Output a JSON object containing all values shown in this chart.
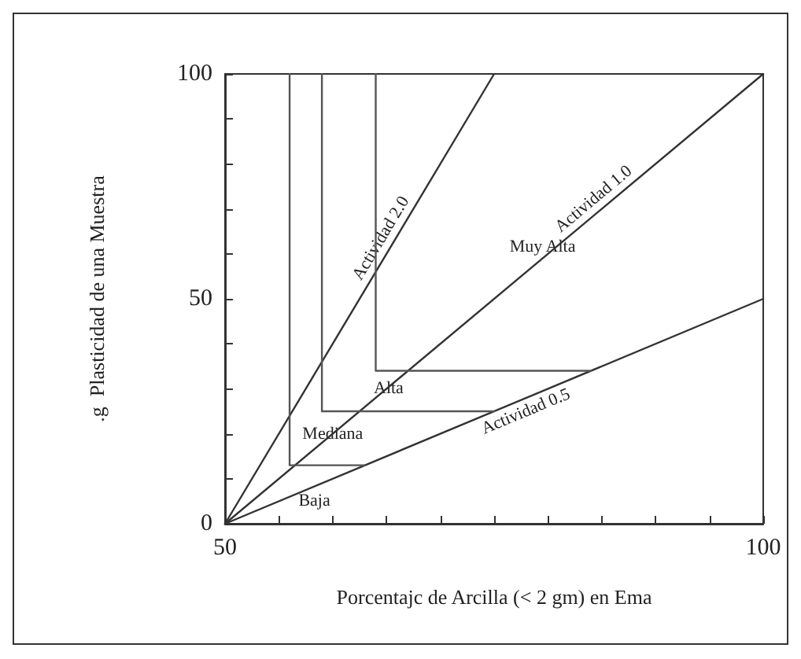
{
  "chart_data": {
    "type": "line",
    "xlabel": "Porcentajc de Arcilla (< 2 gm) en Ema",
    "ylabel": ".g  Plasticidad de una Muestra",
    "xlim": [
      50,
      100
    ],
    "ylim": [
      0,
      100
    ],
    "xticks": [
      50,
      {
        "value": 55,
        "label": null
      },
      {
        "value": 60,
        "label": null
      },
      {
        "value": 65,
        "label": null
      },
      {
        "value": 70,
        "label": null
      },
      {
        "value": 75,
        "label": null
      },
      {
        "value": 80,
        "label": null
      },
      {
        "value": 85,
        "label": null
      },
      {
        "value": 90,
        "label": null
      },
      {
        "value": 95,
        "label": null
      },
      100
    ],
    "yticks": [
      0,
      {
        "value": 10,
        "label": null
      },
      {
        "value": 20,
        "label": null
      },
      {
        "value": 30,
        "label": null
      },
      {
        "value": 40,
        "label": null
      },
      50,
      {
        "value": 60,
        "label": null
      },
      {
        "value": 70,
        "label": null
      },
      {
        "value": 80,
        "label": null
      },
      {
        "value": 90,
        "label": null
      },
      100
    ],
    "grid": false,
    "legend": false,
    "marker": "none",
    "line_style": "solid",
    "series": [
      {
        "name": "Actividad 2.0",
        "color": "#333333",
        "x": [
          50,
          75
        ],
        "values": [
          0,
          100
        ]
      },
      {
        "name": "Actividad 1.0",
        "color": "#333333",
        "x": [
          50,
          100
        ],
        "values": [
          0,
          100
        ]
      },
      {
        "name": "Actividad 0.5",
        "color": "#333333",
        "x": [
          50,
          100
        ],
        "values": [
          0,
          50
        ]
      },
      {
        "color": "#555555",
        "x": [
          56,
          56,
          63
        ],
        "values": [
          100,
          13,
          13
        ]
      },
      {
        "color": "#555555",
        "x": [
          59,
          59,
          75
        ],
        "values": [
          100,
          25,
          25
        ]
      },
      {
        "color": "#555555",
        "x": [
          64,
          64,
          84
        ],
        "values": [
          100,
          34,
          34
        ]
      }
    ],
    "annotations": [
      {
        "text": "Baja",
        "x": 58.3,
        "y": 5
      },
      {
        "text": "Mediana",
        "x": 60,
        "y": 20
      },
      {
        "text": "Alta",
        "x": 65.2,
        "y": 30
      },
      {
        "text": "Muy Alta",
        "x": 79.5,
        "y": 61.5
      }
    ]
  }
}
